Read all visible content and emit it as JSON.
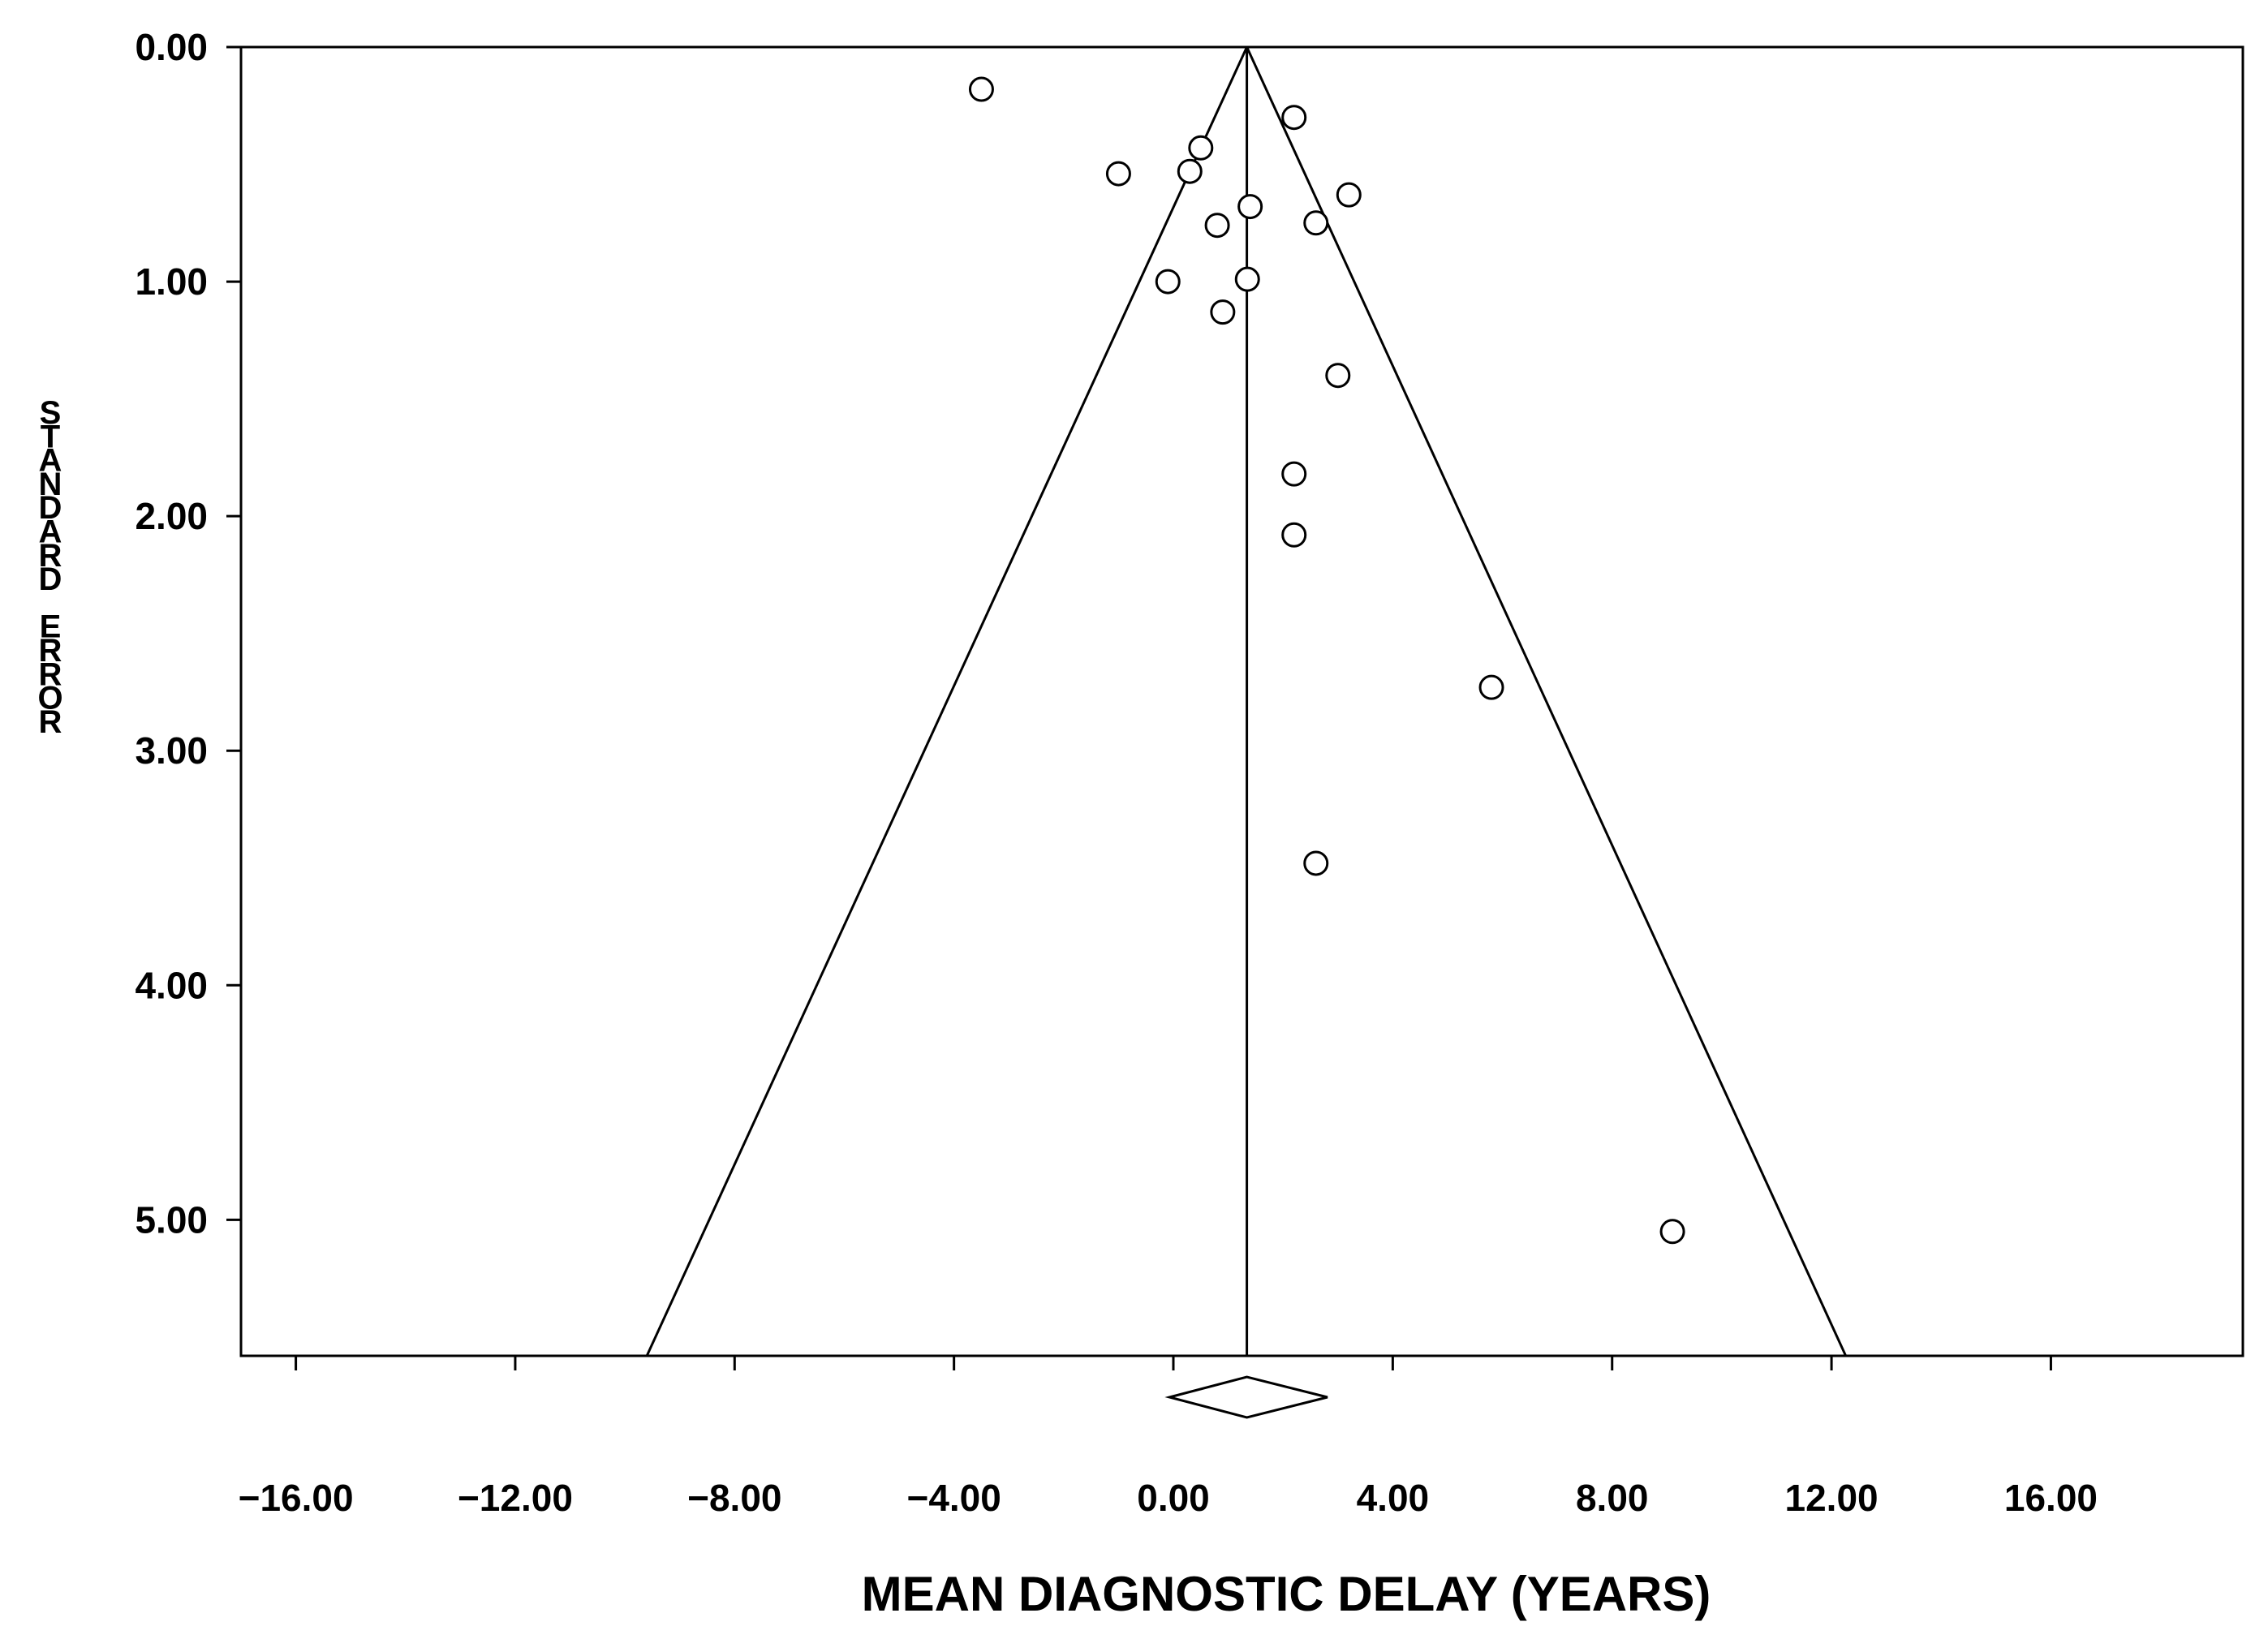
{
  "chart_data": {
    "type": "scatter",
    "subtype": "funnel-plot",
    "xlabel": "MEAN DIAGNOSTIC DELAY (YEARS)",
    "ylabel": "STANDARD ERROR",
    "xlim": [
      -17,
      19.5
    ],
    "ylim": [
      0,
      5.58
    ],
    "y_inverted": true,
    "x_ticks": [
      -16,
      -12,
      -8,
      -4,
      0,
      4,
      8,
      12,
      16
    ],
    "x_tick_labels": [
      "−16.00",
      "−12.00",
      "−8.00",
      "−4.00",
      "0.00",
      "4.00",
      "8.00",
      "12.00",
      "16.00"
    ],
    "y_ticks": [
      0,
      1,
      2,
      3,
      4,
      5
    ],
    "y_tick_labels": [
      "0.00",
      "1.00",
      "2.00",
      "3.00",
      "4.00",
      "5.00"
    ],
    "pooled_estimate": 1.34,
    "funnel_limits_at_bottom": [
      -9.6,
      12.26
    ],
    "diamond": {
      "center": 1.34,
      "lower": -0.07,
      "upper": 2.81
    },
    "points": [
      {
        "x": -3.5,
        "y": 0.18
      },
      {
        "x": 2.2,
        "y": 0.3
      },
      {
        "x": 0.5,
        "y": 0.43
      },
      {
        "x": -1.0,
        "y": 0.54
      },
      {
        "x": 0.3,
        "y": 0.53
      },
      {
        "x": 3.2,
        "y": 0.63
      },
      {
        "x": 1.4,
        "y": 0.68
      },
      {
        "x": 0.8,
        "y": 0.76
      },
      {
        "x": 2.6,
        "y": 0.75
      },
      {
        "x": 1.35,
        "y": 0.99
      },
      {
        "x": -0.1,
        "y": 1.0
      },
      {
        "x": 0.9,
        "y": 1.13
      },
      {
        "x": 3.0,
        "y": 1.4
      },
      {
        "x": 2.2,
        "y": 1.82
      },
      {
        "x": 2.2,
        "y": 2.08
      },
      {
        "x": 5.8,
        "y": 2.73
      },
      {
        "x": 2.6,
        "y": 3.48
      },
      {
        "x": 9.1,
        "y": 5.05
      }
    ]
  }
}
